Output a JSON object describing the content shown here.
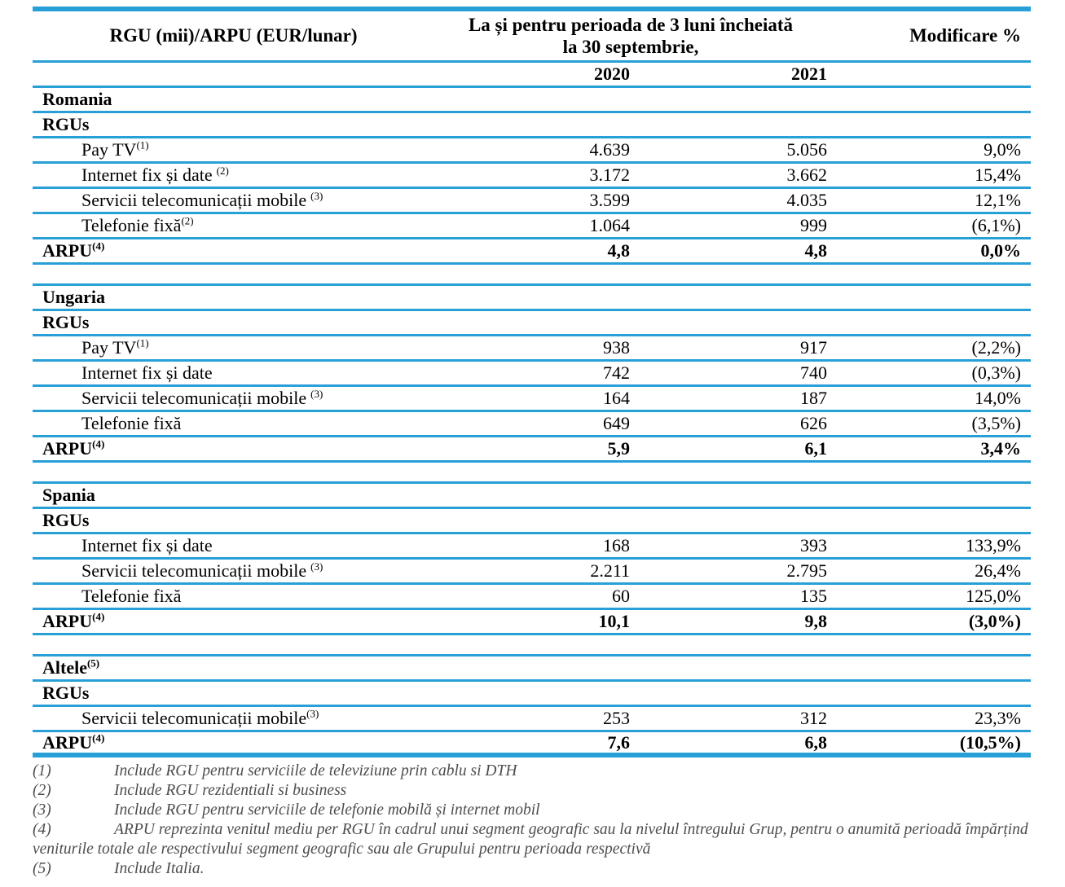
{
  "colors": {
    "table_line": "#28a0d7",
    "text": "#000000",
    "footnote_text": "#4d4d4d"
  },
  "table": {
    "header": {
      "row_label": "RGU (mii)/ARPU (EUR/lunar)",
      "period_line1": "La și pentru perioada de 3 luni încheiată",
      "period_line2": "la  30 septembrie,",
      "year_2020": "2020",
      "year_2021": "2021",
      "change_label": "Modificare %"
    },
    "sections": [
      {
        "country": "Romania",
        "country_sup": "",
        "group": "RGUs",
        "rows": [
          {
            "label": "Pay TV",
            "sup": "(1)",
            "sup_gap": false,
            "y2020": "4.639",
            "y2021": "5.056",
            "change": "9,0%"
          },
          {
            "label": "Internet fix și date",
            "sup": "(2)",
            "sup_gap": true,
            "y2020": "3.172",
            "y2021": "3.662",
            "change": "15,4%"
          },
          {
            "label": "Servicii telecomunicații mobile",
            "sup": "(3)",
            "sup_gap": true,
            "y2020": "3.599",
            "y2021": "4.035",
            "change": "12,1%"
          },
          {
            "label": "Telefonie fixă",
            "sup": "(2)",
            "sup_gap": false,
            "y2020": "1.064",
            "y2021": "999",
            "change": "(6,1%)"
          }
        ],
        "arpu": {
          "label": "ARPU",
          "sup": "(4)",
          "y2020": "4,8",
          "y2021": "4,8",
          "change": "0,0%"
        }
      },
      {
        "country": "Ungaria",
        "country_sup": "",
        "group": "RGUs",
        "rows": [
          {
            "label": "Pay TV",
            "sup": "(1)",
            "sup_gap": false,
            "y2020": "938",
            "y2021": "917",
            "change": "(2,2%)"
          },
          {
            "label": "Internet fix și date",
            "sup": "",
            "sup_gap": false,
            "y2020": "742",
            "y2021": "740",
            "change": "(0,3%)"
          },
          {
            "label": "Servicii telecomunicații mobile",
            "sup": "(3)",
            "sup_gap": true,
            "y2020": "164",
            "y2021": "187",
            "change": "14,0%"
          },
          {
            "label": "Telefonie fixă",
            "sup": "",
            "sup_gap": false,
            "y2020": "649",
            "y2021": "626",
            "change": "(3,5%)"
          }
        ],
        "arpu": {
          "label": "ARPU",
          "sup": "(4)",
          "y2020": "5,9",
          "y2021": "6,1",
          "change": "3,4%"
        }
      },
      {
        "country": "Spania",
        "country_sup": "",
        "group": "RGUs",
        "rows": [
          {
            "label": "Internet fix și date",
            "sup": "",
            "sup_gap": false,
            "y2020": "168",
            "y2021": "393",
            "change": "133,9%"
          },
          {
            "label": "Servicii telecomunicații mobile",
            "sup": "(3)",
            "sup_gap": true,
            "y2020": "2.211",
            "y2021": "2.795",
            "change": "26,4%"
          },
          {
            "label": "Telefonie fixă",
            "sup": "",
            "sup_gap": false,
            "y2020": "60",
            "y2021": "135",
            "change": "125,0%"
          }
        ],
        "arpu": {
          "label": "ARPU",
          "sup": "(4)",
          "y2020": "10,1",
          "y2021": "9,8",
          "change": "(3,0%)"
        }
      },
      {
        "country": "Altele",
        "country_sup": "(5)",
        "group": "RGUs",
        "rows": [
          {
            "label": "Servicii telecomunicații mobile",
            "sup": "(3)",
            "sup_gap": false,
            "y2020": "253",
            "y2021": "312",
            "change": "23,3%"
          }
        ],
        "arpu": {
          "label": "ARPU",
          "sup": "(4)",
          "y2020": "7,6",
          "y2021": "6,8",
          "change": "(10,5%)"
        }
      }
    ]
  },
  "footnotes": [
    {
      "num": "(1)",
      "text": "Include RGU pentru serviciile de televiziune prin cablu si DTH"
    },
    {
      "num": "(2)",
      "text": "Include RGU rezidentiali si business"
    },
    {
      "num": "(3)",
      "text": "Include RGU pentru serviciile de telefonie mobilă și internet mobil"
    },
    {
      "num": "(4)",
      "text": "ARPU reprezinta venitul mediu per RGU în cadrul unui segment geografic sau la nivelul întregului Grup, pentru o anumită perioadă împărțind veniturile totale ale respectivului segment geografic sau ale Grupului pentru perioada respectivă"
    },
    {
      "num": "(5)",
      "text": "Include Italia."
    }
  ]
}
